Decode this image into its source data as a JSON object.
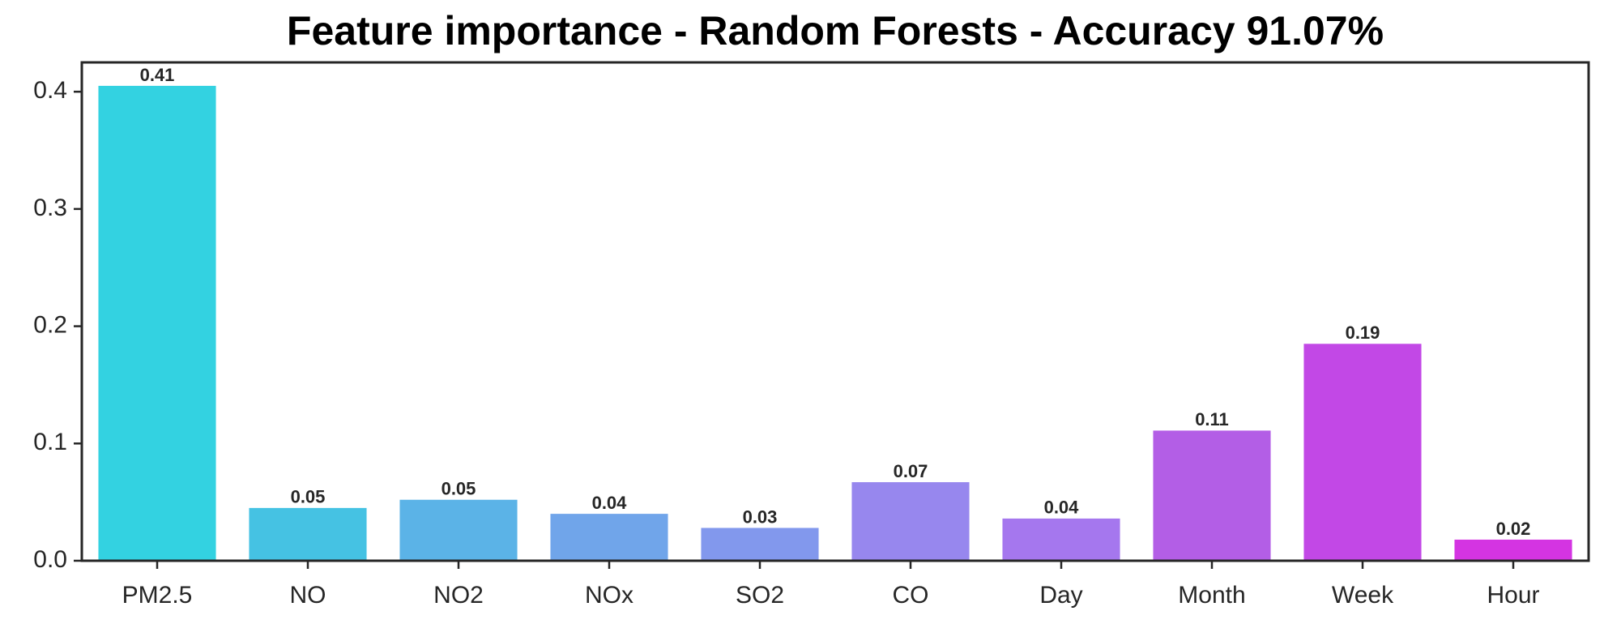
{
  "chart_data": {
    "type": "bar",
    "title": "Feature importance - Random Forests - Accuracy 91.07%",
    "categories": [
      "PM2.5",
      "NO",
      "NO2",
      "NOx",
      "SO2",
      "CO",
      "Day",
      "Month",
      "Week",
      "Hour"
    ],
    "values": [
      0.405,
      0.045,
      0.052,
      0.04,
      0.028,
      0.067,
      0.036,
      0.111,
      0.185,
      0.018
    ],
    "value_labels": [
      "0.41",
      "0.05",
      "0.05",
      "0.04",
      "0.03",
      "0.07",
      "0.04",
      "0.11",
      "0.19",
      "0.02"
    ],
    "colors": [
      "#33d2e1",
      "#45c2e3",
      "#5bb3e7",
      "#70a5ea",
      "#8298ed",
      "#9787ee",
      "#a577ee",
      "#b35ee6",
      "#c248e6",
      "#d434e2"
    ],
    "ylim": [
      0,
      0.425
    ],
    "yticks": [
      {
        "value": 0,
        "label": "0.0"
      },
      0.1,
      0.2,
      0.3,
      0.4
    ]
  }
}
